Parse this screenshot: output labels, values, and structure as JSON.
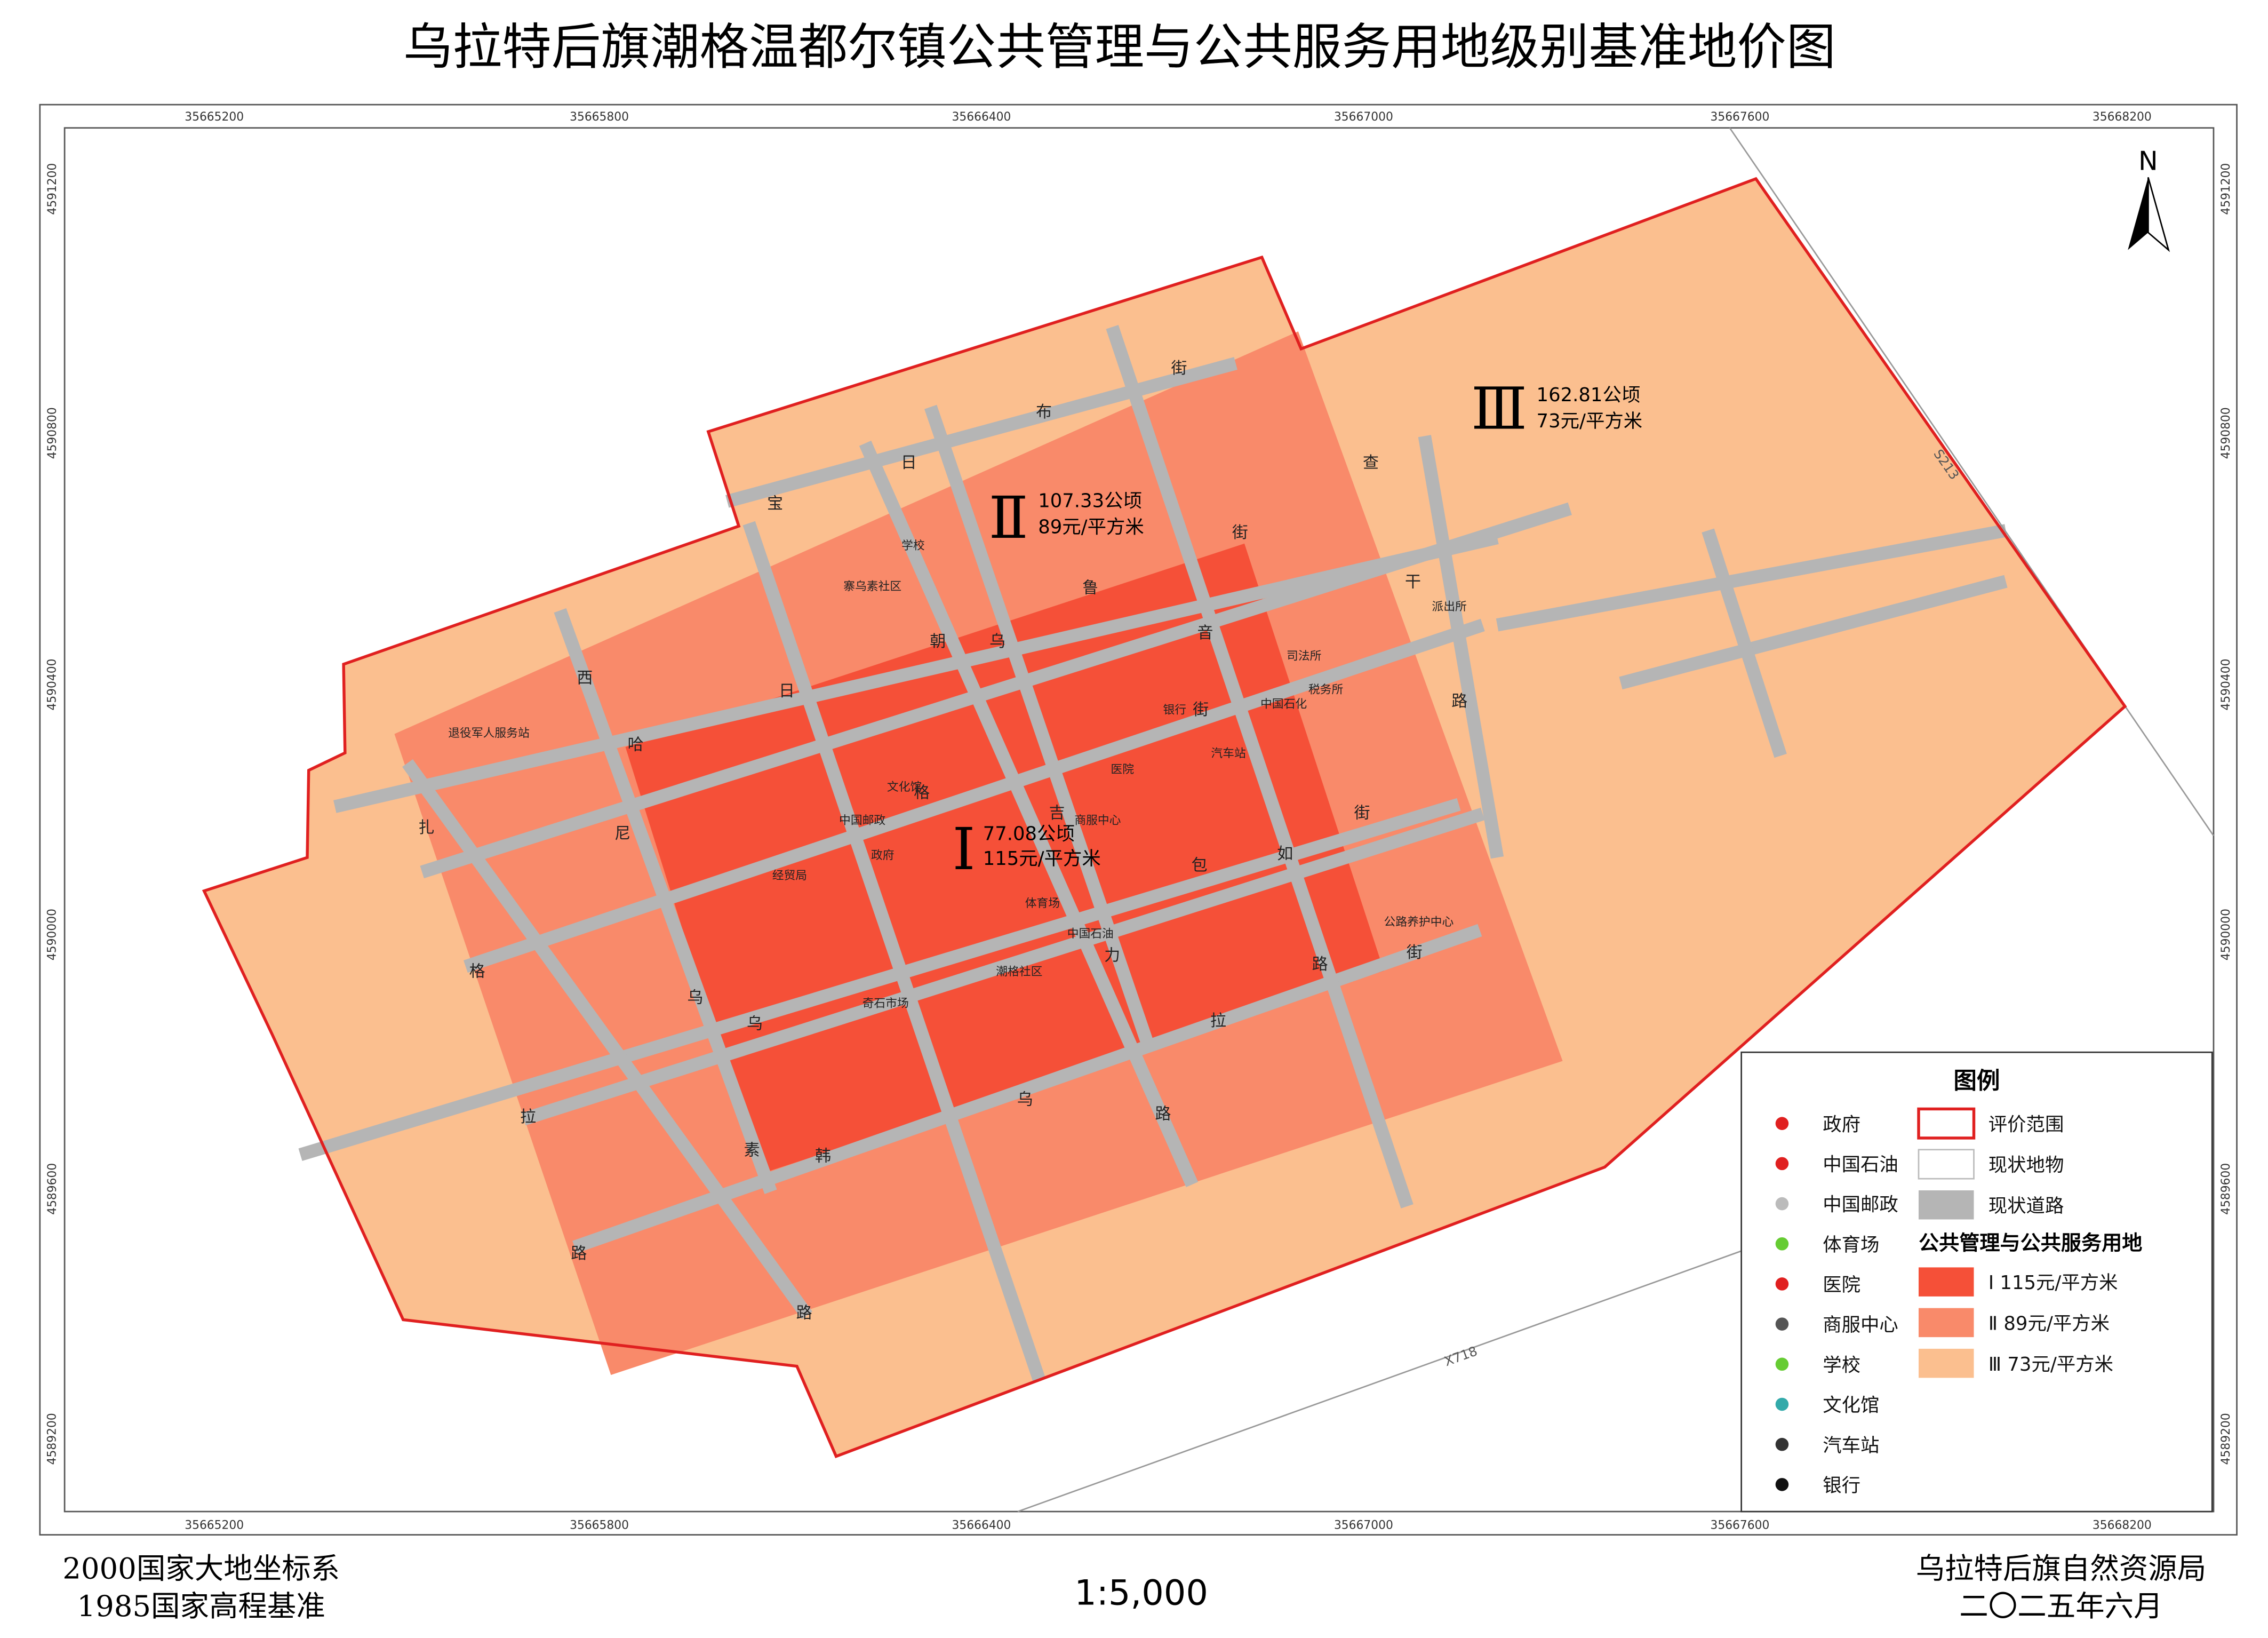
{
  "title": "乌拉特后旗潮格温都尔镇公共管理与公共服务用地级别基准地价图",
  "x_coords": [
    "35665200",
    "35665800",
    "35666400",
    "35667000",
    "35667600",
    "35668200"
  ],
  "y_coords": [
    "4591200",
    "4590800",
    "4590400",
    "4590000",
    "4589600",
    "4589200"
  ],
  "north": "N",
  "zones": [
    {
      "numeral": "Ⅰ",
      "area": "77.08公顷",
      "price": "115元/平方米"
    },
    {
      "numeral": "Ⅱ",
      "area": "107.33公顷",
      "price": "89元/平方米"
    },
    {
      "numeral": "Ⅲ",
      "area": "162.81公顷",
      "price": "73元/平方米"
    }
  ],
  "places": [
    "学校",
    "寨乌素社区",
    "退役军人服务站",
    "文化馆",
    "中国邮政",
    "政府",
    "经贸局",
    "体育场",
    "商服中心",
    "医院",
    "银行",
    "汽车站",
    "中国石化",
    "税务所",
    "司法所",
    "派出所",
    "中国石油",
    "潮格社区",
    "奇石市场",
    "公路养护中心"
  ],
  "road_chars": [
    "宝",
    "日",
    "布",
    "街",
    "查",
    "干",
    "路",
    "街",
    "鲁",
    "乌",
    "朝",
    "音",
    "街",
    "西",
    "日",
    "格",
    "哈",
    "扎",
    "尼",
    "吉",
    "如",
    "包",
    "街",
    "街",
    "路",
    "格",
    "乌",
    "拉",
    "力",
    "乌",
    "拉",
    "素",
    "韩",
    "乌",
    "路",
    "路",
    "路"
  ],
  "highways": [
    "S213",
    "X718"
  ],
  "legend": {
    "title": "图例",
    "symbols": [
      "政府",
      "中国石油",
      "中国邮政",
      "体育场",
      "医院",
      "商服中心",
      "学校",
      "文化馆",
      "汽车站",
      "银行"
    ],
    "areas": [
      "评价范围",
      "现状地物",
      "现状道路"
    ],
    "subtitle": "公共管理与公共服务用地",
    "levels": [
      "Ⅰ 115元/平方米",
      "Ⅱ 89元/平方米",
      "Ⅲ 73元/平方米"
    ]
  },
  "footer": {
    "datum": "2000国家大地坐标系",
    "height_datum": "1985国家高程基准",
    "scale": "1:5,000",
    "agency": "乌拉特后旗自然资源局",
    "date": "二〇二五年六月"
  }
}
